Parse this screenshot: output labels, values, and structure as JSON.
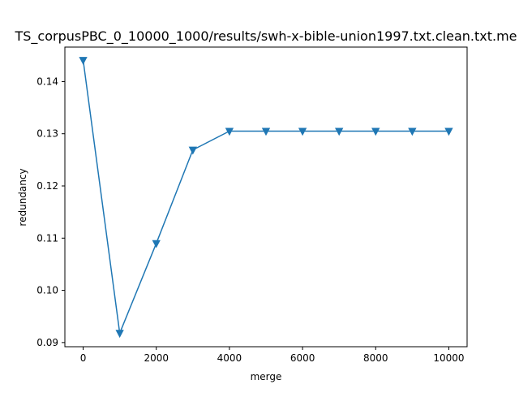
{
  "chart_data": {
    "type": "line",
    "title": "TS_corpusPBC_0_10000_1000/results/swh-x-bible-union1997.txt.clean.txt.me",
    "xlabel": "merge",
    "ylabel": "redundancy",
    "xlim": [
      -500,
      10500
    ],
    "ylim": [
      0.0892,
      0.1466
    ],
    "xticks": [
      0,
      2000,
      4000,
      6000,
      8000,
      10000
    ],
    "xtick_labels": [
      "0",
      "2000",
      "4000",
      "6000",
      "8000",
      "10000"
    ],
    "yticks": [
      0.09,
      0.1,
      0.11,
      0.12,
      0.13,
      0.14
    ],
    "ytick_labels": [
      "0.09",
      "0.10",
      "0.11",
      "0.12",
      "0.13",
      "0.14"
    ],
    "grid": false,
    "legend": "none",
    "series": [
      {
        "color": "#1f77b4",
        "marker": "triangle-down",
        "x": [
          0,
          1000,
          2000,
          3000,
          4000,
          5000,
          6000,
          7000,
          8000,
          9000,
          10000
        ],
        "y": [
          0.1441,
          0.0918,
          0.109,
          0.1269,
          0.1305,
          0.1305,
          0.1305,
          0.1305,
          0.1305,
          0.1305,
          0.1305
        ]
      }
    ]
  }
}
